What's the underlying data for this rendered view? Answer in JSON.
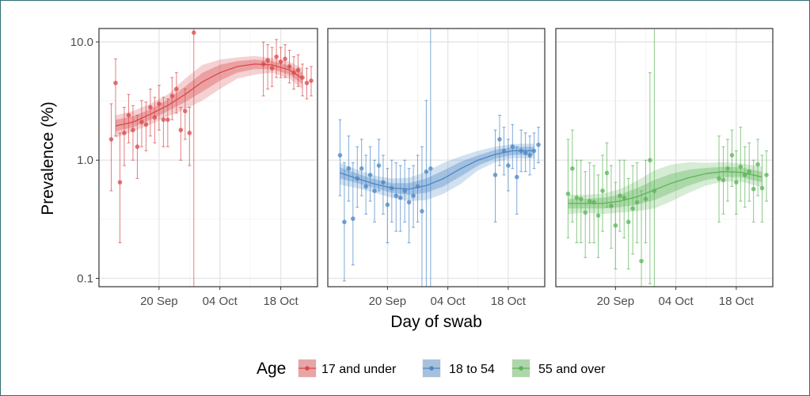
{
  "chart_data": {
    "type": "line",
    "y_scale": "log10",
    "ylabel": "Prevalence (%)",
    "xlabel": "Day of swab",
    "ylim": [
      0.085,
      13
    ],
    "y_ticks": [
      {
        "value": 0.1,
        "label": "0.1"
      },
      {
        "value": 1.0,
        "label": "1.0"
      },
      {
        "value": 10.0,
        "label": "10.0"
      }
    ],
    "x_domain_days": [
      0,
      47
    ],
    "x_ticks": [
      {
        "day": 12,
        "label": "20 Sep"
      },
      {
        "day": 26,
        "label": "04 Oct"
      },
      {
        "day": 40,
        "label": "18 Oct"
      }
    ],
    "legend": {
      "title": "Age",
      "position": "bottom",
      "entries": [
        "17 and under",
        "18 to 54",
        "55 and over"
      ]
    },
    "panels": [
      {
        "name": "17 and under",
        "color": "#d9484b",
        "fit": [
          {
            "day": 2,
            "y": 1.95,
            "lo50": 1.75,
            "hi50": 2.2,
            "lo95": 1.55,
            "hi95": 2.4
          },
          {
            "day": 6,
            "y": 2.1,
            "lo50": 1.9,
            "hi50": 2.35,
            "lo95": 1.75,
            "hi95": 2.6
          },
          {
            "day": 10,
            "y": 2.45,
            "lo50": 2.2,
            "hi50": 2.7,
            "lo95": 2.0,
            "hi95": 3.0
          },
          {
            "day": 14,
            "y": 2.9,
            "lo50": 2.6,
            "hi50": 3.25,
            "lo95": 2.35,
            "hi95": 3.6
          },
          {
            "day": 18,
            "y": 3.6,
            "lo50": 3.1,
            "hi50": 4.2,
            "lo95": 2.7,
            "hi95": 4.9
          },
          {
            "day": 22,
            "y": 4.6,
            "lo50": 3.8,
            "hi50": 5.5,
            "lo95": 3.2,
            "hi95": 6.4
          },
          {
            "day": 26,
            "y": 5.5,
            "lo50": 4.7,
            "hi50": 6.4,
            "lo95": 4.0,
            "hi95": 7.1
          },
          {
            "day": 30,
            "y": 6.2,
            "lo50": 5.5,
            "hi50": 6.9,
            "lo95": 4.9,
            "hi95": 7.4
          },
          {
            "day": 34,
            "y": 6.5,
            "lo50": 5.9,
            "hi50": 7.1,
            "lo95": 5.3,
            "hi95": 7.6
          },
          {
            "day": 38,
            "y": 6.4,
            "lo50": 5.9,
            "hi50": 6.9,
            "lo95": 5.5,
            "hi95": 7.3
          },
          {
            "day": 42,
            "y": 5.8,
            "lo50": 5.3,
            "hi50": 6.3,
            "lo95": 4.9,
            "hi95": 6.8
          },
          {
            "day": 45,
            "y": 4.9,
            "lo50": 4.4,
            "hi50": 5.5,
            "lo95": 4.0,
            "hi95": 6.0
          }
        ],
        "points": [
          {
            "day": 1,
            "y": 1.5,
            "lo": 0.55,
            "hi": 3.0
          },
          {
            "day": 2,
            "y": 4.5,
            "lo": 1.6,
            "hi": 7.2
          },
          {
            "day": 3,
            "y": 0.65,
            "lo": 0.2,
            "hi": 1.7
          },
          {
            "day": 4,
            "y": 1.7,
            "lo": 0.9,
            "hi": 2.8
          },
          {
            "day": 5,
            "y": 2.4,
            "lo": 1.4,
            "hi": 3.6
          },
          {
            "day": 6,
            "y": 1.8,
            "lo": 1.0,
            "hi": 2.9
          },
          {
            "day": 7,
            "y": 1.3,
            "lo": 0.7,
            "hi": 2.4
          },
          {
            "day": 8,
            "y": 2.1,
            "lo": 1.3,
            "hi": 3.2
          },
          {
            "day": 9,
            "y": 2.0,
            "lo": 1.2,
            "hi": 3.1
          },
          {
            "day": 10,
            "y": 2.8,
            "lo": 1.6,
            "hi": 4.0
          },
          {
            "day": 11,
            "y": 2.3,
            "lo": 1.4,
            "hi": 3.4
          },
          {
            "day": 12,
            "y": 3.0,
            "lo": 1.8,
            "hi": 4.3
          },
          {
            "day": 13,
            "y": 2.2,
            "lo": 1.3,
            "hi": 3.4
          },
          {
            "day": 14,
            "y": 2.2,
            "lo": 1.3,
            "hi": 3.3
          },
          {
            "day": 15,
            "y": 3.5,
            "lo": 2.2,
            "hi": 5.0
          },
          {
            "day": 16,
            "y": 4.0,
            "lo": 2.5,
            "hi": 5.5
          },
          {
            "day": 17,
            "y": 1.8,
            "lo": 1.0,
            "hi": 2.8
          },
          {
            "day": 18,
            "y": 2.6,
            "lo": 1.5,
            "hi": 4.0
          },
          {
            "day": 19,
            "y": 1.7,
            "lo": 0.9,
            "hi": 2.8
          },
          {
            "day": 20,
            "y": 12.0,
            "lo": 0.08,
            "hi": 13.0
          },
          {
            "day": 36,
            "y": 6.5,
            "lo": 3.5,
            "hi": 10.0
          },
          {
            "day": 37,
            "y": 7.0,
            "lo": 4.0,
            "hi": 9.5
          },
          {
            "day": 38,
            "y": 6.0,
            "lo": 4.2,
            "hi": 9.0
          },
          {
            "day": 39,
            "y": 7.5,
            "lo": 5.0,
            "hi": 10.5
          },
          {
            "day": 40,
            "y": 6.8,
            "lo": 5.0,
            "hi": 9.0
          },
          {
            "day": 41,
            "y": 7.2,
            "lo": 5.0,
            "hi": 9.5
          },
          {
            "day": 42,
            "y": 6.2,
            "lo": 4.5,
            "hi": 8.5
          },
          {
            "day": 43,
            "y": 5.5,
            "lo": 4.0,
            "hi": 7.5
          },
          {
            "day": 44,
            "y": 5.8,
            "lo": 4.2,
            "hi": 7.8
          },
          {
            "day": 45,
            "y": 5.0,
            "lo": 3.5,
            "hi": 6.5
          },
          {
            "day": 46,
            "y": 4.5,
            "lo": 3.3,
            "hi": 6.0
          },
          {
            "day": 47,
            "y": 4.7,
            "lo": 3.5,
            "hi": 6.2
          }
        ]
      },
      {
        "name": "18 to 54",
        "color": "#4a86c5",
        "fit": [
          {
            "day": 1,
            "y": 0.78,
            "lo50": 0.7,
            "hi50": 0.87,
            "lo95": 0.62,
            "hi95": 0.95
          },
          {
            "day": 5,
            "y": 0.7,
            "lo50": 0.64,
            "hi50": 0.77,
            "lo95": 0.58,
            "hi95": 0.83
          },
          {
            "day": 9,
            "y": 0.63,
            "lo50": 0.58,
            "hi50": 0.69,
            "lo95": 0.53,
            "hi95": 0.74
          },
          {
            "day": 13,
            "y": 0.58,
            "lo50": 0.53,
            "hi50": 0.64,
            "lo95": 0.48,
            "hi95": 0.7
          },
          {
            "day": 17,
            "y": 0.57,
            "lo50": 0.51,
            "hi50": 0.64,
            "lo95": 0.45,
            "hi95": 0.71
          },
          {
            "day": 21,
            "y": 0.61,
            "lo50": 0.53,
            "hi50": 0.7,
            "lo95": 0.46,
            "hi95": 0.8
          },
          {
            "day": 25,
            "y": 0.7,
            "lo50": 0.6,
            "hi50": 0.82,
            "lo95": 0.52,
            "hi95": 0.95
          },
          {
            "day": 29,
            "y": 0.85,
            "lo50": 0.73,
            "hi50": 0.97,
            "lo95": 0.63,
            "hi95": 1.08
          },
          {
            "day": 33,
            "y": 1.0,
            "lo50": 0.9,
            "hi50": 1.1,
            "lo95": 0.82,
            "hi95": 1.2
          },
          {
            "day": 37,
            "y": 1.12,
            "lo50": 1.03,
            "hi50": 1.22,
            "lo95": 0.96,
            "hi95": 1.3
          },
          {
            "day": 41,
            "y": 1.2,
            "lo50": 1.11,
            "hi50": 1.29,
            "lo95": 1.04,
            "hi95": 1.37
          },
          {
            "day": 46,
            "y": 1.2,
            "lo50": 1.11,
            "hi50": 1.3,
            "lo95": 1.03,
            "hi95": 1.38
          }
        ],
        "points": [
          {
            "day": 1,
            "y": 1.1,
            "lo": 0.5,
            "hi": 2.2
          },
          {
            "day": 2,
            "y": 0.3,
            "lo": 0.095,
            "hi": 0.95
          },
          {
            "day": 3,
            "y": 0.85,
            "lo": 0.45,
            "hi": 1.6
          },
          {
            "day": 4,
            "y": 0.32,
            "lo": 0.13,
            "hi": 0.95
          },
          {
            "day": 5,
            "y": 0.7,
            "lo": 0.4,
            "hi": 1.3
          },
          {
            "day": 6,
            "y": 0.85,
            "lo": 0.5,
            "hi": 1.5
          },
          {
            "day": 7,
            "y": 0.6,
            "lo": 0.35,
            "hi": 1.1
          },
          {
            "day": 8,
            "y": 0.75,
            "lo": 0.45,
            "hi": 1.3
          },
          {
            "day": 9,
            "y": 0.55,
            "lo": 0.3,
            "hi": 1.0
          },
          {
            "day": 10,
            "y": 0.9,
            "lo": 0.55,
            "hi": 1.5
          },
          {
            "day": 11,
            "y": 0.65,
            "lo": 0.35,
            "hi": 1.1
          },
          {
            "day": 12,
            "y": 0.42,
            "lo": 0.2,
            "hi": 0.85
          },
          {
            "day": 13,
            "y": 0.58,
            "lo": 0.3,
            "hi": 1.0
          },
          {
            "day": 14,
            "y": 0.5,
            "lo": 0.25,
            "hi": 0.95
          },
          {
            "day": 15,
            "y": 0.48,
            "lo": 0.25,
            "hi": 0.9
          },
          {
            "day": 16,
            "y": 0.55,
            "lo": 0.3,
            "hi": 1.0
          },
          {
            "day": 17,
            "y": 0.44,
            "lo": 0.2,
            "hi": 0.85
          },
          {
            "day": 18,
            "y": 0.5,
            "lo": 0.27,
            "hi": 0.9
          },
          {
            "day": 19,
            "y": 0.6,
            "lo": 0.3,
            "hi": 1.1
          },
          {
            "day": 20,
            "y": 0.37,
            "lo": 0.08,
            "hi": 1.3
          },
          {
            "day": 21,
            "y": 0.8,
            "lo": 0.08,
            "hi": 3.2
          },
          {
            "day": 22,
            "y": 0.85,
            "lo": 0.08,
            "hi": 13.0
          },
          {
            "day": 37,
            "y": 0.75,
            "lo": 0.3,
            "hi": 1.8
          },
          {
            "day": 38,
            "y": 1.5,
            "lo": 0.9,
            "hi": 2.4
          },
          {
            "day": 39,
            "y": 1.2,
            "lo": 0.75,
            "hi": 1.9
          },
          {
            "day": 40,
            "y": 0.9,
            "lo": 0.55,
            "hi": 1.5
          },
          {
            "day": 41,
            "y": 1.3,
            "lo": 0.85,
            "hi": 2.0
          },
          {
            "day": 42,
            "y": 0.72,
            "lo": 0.35,
            "hi": 1.3
          },
          {
            "day": 43,
            "y": 1.2,
            "lo": 0.8,
            "hi": 1.8
          },
          {
            "day": 44,
            "y": 1.15,
            "lo": 0.8,
            "hi": 1.7
          },
          {
            "day": 45,
            "y": 1.1,
            "lo": 0.75,
            "hi": 1.6
          },
          {
            "day": 46,
            "y": 1.2,
            "lo": 0.85,
            "hi": 1.7
          },
          {
            "day": 47,
            "y": 1.35,
            "lo": 0.95,
            "hi": 1.9
          }
        ]
      },
      {
        "name": "55 and over",
        "color": "#5bb455",
        "fit": [
          {
            "day": 1,
            "y": 0.43,
            "lo50": 0.39,
            "hi50": 0.47,
            "lo95": 0.35,
            "hi95": 0.51
          },
          {
            "day": 5,
            "y": 0.43,
            "lo50": 0.39,
            "hi50": 0.47,
            "lo95": 0.36,
            "hi95": 0.51
          },
          {
            "day": 9,
            "y": 0.43,
            "lo50": 0.39,
            "hi50": 0.48,
            "lo95": 0.35,
            "hi95": 0.52
          },
          {
            "day": 13,
            "y": 0.45,
            "lo50": 0.4,
            "hi50": 0.51,
            "lo95": 0.36,
            "hi95": 0.57
          },
          {
            "day": 17,
            "y": 0.49,
            "lo50": 0.42,
            "hi50": 0.58,
            "lo95": 0.37,
            "hi95": 0.67
          },
          {
            "day": 21,
            "y": 0.56,
            "lo50": 0.46,
            "hi50": 0.68,
            "lo95": 0.39,
            "hi95": 0.82
          },
          {
            "day": 25,
            "y": 0.64,
            "lo50": 0.53,
            "hi50": 0.77,
            "lo95": 0.45,
            "hi95": 0.92
          },
          {
            "day": 29,
            "y": 0.71,
            "lo50": 0.61,
            "hi50": 0.83,
            "lo95": 0.53,
            "hi95": 0.96
          },
          {
            "day": 33,
            "y": 0.77,
            "lo50": 0.68,
            "hi50": 0.86,
            "lo95": 0.61,
            "hi95": 0.95
          },
          {
            "day": 37,
            "y": 0.8,
            "lo50": 0.72,
            "hi50": 0.88,
            "lo95": 0.66,
            "hi95": 0.96
          },
          {
            "day": 41,
            "y": 0.79,
            "lo50": 0.72,
            "hi50": 0.87,
            "lo95": 0.66,
            "hi95": 0.94
          },
          {
            "day": 46,
            "y": 0.72,
            "lo50": 0.65,
            "hi50": 0.8,
            "lo95": 0.59,
            "hi95": 0.88
          }
        ],
        "points": [
          {
            "day": 1,
            "y": 0.52,
            "lo": 0.22,
            "hi": 1.5
          },
          {
            "day": 2,
            "y": 0.85,
            "lo": 0.3,
            "hi": 1.8
          },
          {
            "day": 3,
            "y": 0.48,
            "lo": 0.2,
            "hi": 1.0
          },
          {
            "day": 4,
            "y": 0.47,
            "lo": 0.2,
            "hi": 1.0
          },
          {
            "day": 5,
            "y": 0.36,
            "lo": 0.15,
            "hi": 0.8
          },
          {
            "day": 6,
            "y": 0.45,
            "lo": 0.2,
            "hi": 0.95
          },
          {
            "day": 7,
            "y": 0.44,
            "lo": 0.2,
            "hi": 0.9
          },
          {
            "day": 8,
            "y": 0.34,
            "lo": 0.15,
            "hi": 0.75
          },
          {
            "day": 9,
            "y": 0.55,
            "lo": 0.25,
            "hi": 1.1
          },
          {
            "day": 10,
            "y": 0.78,
            "lo": 0.4,
            "hi": 1.4
          },
          {
            "day": 11,
            "y": 0.41,
            "lo": 0.18,
            "hi": 0.9
          },
          {
            "day": 12,
            "y": 0.28,
            "lo": 0.12,
            "hi": 0.65
          },
          {
            "day": 13,
            "y": 0.5,
            "lo": 0.25,
            "hi": 1.0
          },
          {
            "day": 14,
            "y": 0.48,
            "lo": 0.22,
            "hi": 1.0
          },
          {
            "day": 15,
            "y": 0.3,
            "lo": 0.12,
            "hi": 0.7
          },
          {
            "day": 16,
            "y": 0.39,
            "lo": 0.16,
            "hi": 0.9
          },
          {
            "day": 17,
            "y": 0.44,
            "lo": 0.2,
            "hi": 0.95
          },
          {
            "day": 18,
            "y": 0.14,
            "lo": 0.08,
            "hi": 0.55
          },
          {
            "day": 19,
            "y": 0.47,
            "lo": 0.2,
            "hi": 1.0
          },
          {
            "day": 20,
            "y": 1.0,
            "lo": 0.09,
            "hi": 5.5
          },
          {
            "day": 21,
            "y": 0.55,
            "lo": 0.08,
            "hi": 13.0
          },
          {
            "day": 36,
            "y": 0.7,
            "lo": 0.3,
            "hi": 1.6
          },
          {
            "day": 37,
            "y": 0.68,
            "lo": 0.35,
            "hi": 1.3
          },
          {
            "day": 38,
            "y": 0.85,
            "lo": 0.45,
            "hi": 1.5
          },
          {
            "day": 39,
            "y": 1.1,
            "lo": 0.6,
            "hi": 1.8
          },
          {
            "day": 40,
            "y": 0.65,
            "lo": 0.35,
            "hi": 1.2
          },
          {
            "day": 41,
            "y": 0.88,
            "lo": 0.45,
            "hi": 1.9
          },
          {
            "day": 42,
            "y": 0.75,
            "lo": 0.4,
            "hi": 1.3
          },
          {
            "day": 43,
            "y": 0.8,
            "lo": 0.45,
            "hi": 1.4
          },
          {
            "day": 44,
            "y": 0.57,
            "lo": 0.3,
            "hi": 1.0
          },
          {
            "day": 45,
            "y": 0.92,
            "lo": 0.5,
            "hi": 1.5
          },
          {
            "day": 46,
            "y": 0.58,
            "lo": 0.3,
            "hi": 1.1
          },
          {
            "day": 47,
            "y": 0.75,
            "lo": 0.45,
            "hi": 1.2
          }
        ]
      }
    ]
  }
}
